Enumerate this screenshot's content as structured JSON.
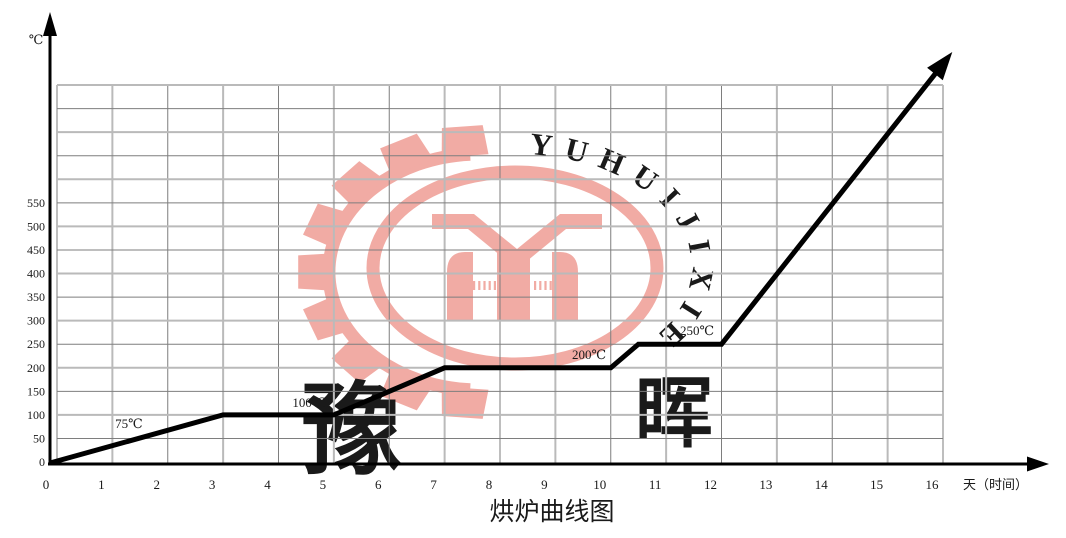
{
  "chart_data": {
    "type": "line",
    "title": "烘炉曲线图",
    "ylabel": "℃",
    "xlabel": "天（时间）",
    "x_ticks": [
      0,
      1,
      2,
      3,
      4,
      5,
      6,
      7,
      8,
      9,
      10,
      11,
      12,
      13,
      14,
      15,
      16
    ],
    "y_ticks": [
      0,
      50,
      100,
      150,
      200,
      250,
      300,
      350,
      400,
      450,
      500,
      550
    ],
    "x_range_days": [
      0,
      16
    ],
    "y_grid_max": 800,
    "y_grid_step": 50,
    "grid": true,
    "legend": "none",
    "series": [
      {
        "color": "#000000",
        "arrow_end": true,
        "points": [
          [
            0,
            0
          ],
          [
            3,
            100
          ],
          [
            5,
            100
          ],
          [
            7,
            200
          ],
          [
            10,
            200
          ],
          [
            10.5,
            250
          ],
          [
            12,
            250
          ],
          [
            15.9,
            830
          ]
        ]
      }
    ],
    "annotations": [
      {
        "text": "75℃",
        "day": 1.05,
        "temp": 72
      },
      {
        "text": "100℃",
        "day": 4.25,
        "temp": 117
      },
      {
        "text": "200℃",
        "day": 9.3,
        "temp": 219
      },
      {
        "text": "250℃",
        "day": 11.25,
        "temp": 270
      }
    ]
  },
  "watermark": {
    "ring_text": "YUHUIJIXIE",
    "char_left": "豫",
    "char_right": "晖",
    "color": "#f1aba4"
  }
}
